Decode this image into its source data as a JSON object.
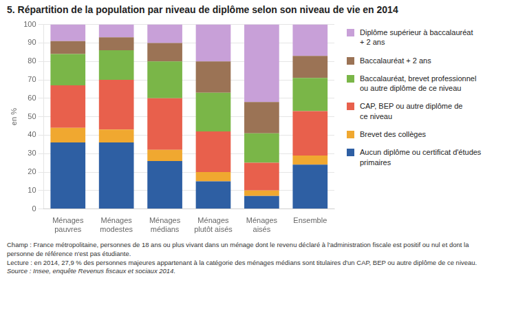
{
  "chart_data": {
    "type": "bar",
    "title": "5. Répartition de la population par niveau de diplôme selon son niveau de vie en 2014",
    "ylabel": "en %",
    "categories": [
      "Ménages\npauvres",
      "Ménages\nmodestes",
      "Ménages\nmédians",
      "Ménages\nplutôt aisés",
      "Ménages\naisés",
      "Ensemble"
    ],
    "series": [
      {
        "name": "Aucun diplôme ou certificat d'études\nprimaires",
        "color": "#2e5fa3",
        "values": [
          36,
          36,
          26,
          15,
          7,
          24
        ]
      },
      {
        "name": "Brevet des collèges",
        "color": "#f0a830",
        "values": [
          8,
          7,
          6,
          5,
          3,
          5
        ]
      },
      {
        "name": "CAP, BEP ou autre diplôme de\nce niveau",
        "color": "#e8604c",
        "values": [
          23,
          27,
          28,
          22,
          15,
          24
        ]
      },
      {
        "name": "Baccalauréat, brevet professionnel\nou autre diplôme de ce niveau",
        "color": "#7ab648",
        "values": [
          17,
          16,
          20,
          21,
          16,
          18
        ]
      },
      {
        "name": "Baccalauréat + 2 ans",
        "color": "#9b7355",
        "values": [
          7,
          7,
          10,
          17,
          17,
          12
        ]
      },
      {
        "name": "Diplôme supérieur à baccalauréat\n+ 2 ans",
        "color": "#c8a0d8",
        "values": [
          9,
          7,
          10,
          20,
          42,
          17
        ]
      }
    ],
    "ylim": [
      0,
      100
    ],
    "yticks": [
      0,
      10,
      20,
      30,
      40,
      50,
      60,
      70,
      80,
      90,
      100
    ],
    "stacked": true,
    "grid": true,
    "legend": "right",
    "footnotes": [
      "Champ : France métropolitaine, personnes de 18 ans ou plus vivant dans un ménage dont le revenu déclaré à l'administration fiscale est positif ou nul et dont la",
      "personne de référence n'est pas étudiante.",
      "Lecture : en 2014, 27,9 % des personnes majeures appartenant à la catégorie des ménages médians sont titulaires d'un CAP, BEP ou autre diplôme de ce niveau.",
      "Source : Insee, enquête Revenus fiscaux et sociaux 2014."
    ]
  }
}
